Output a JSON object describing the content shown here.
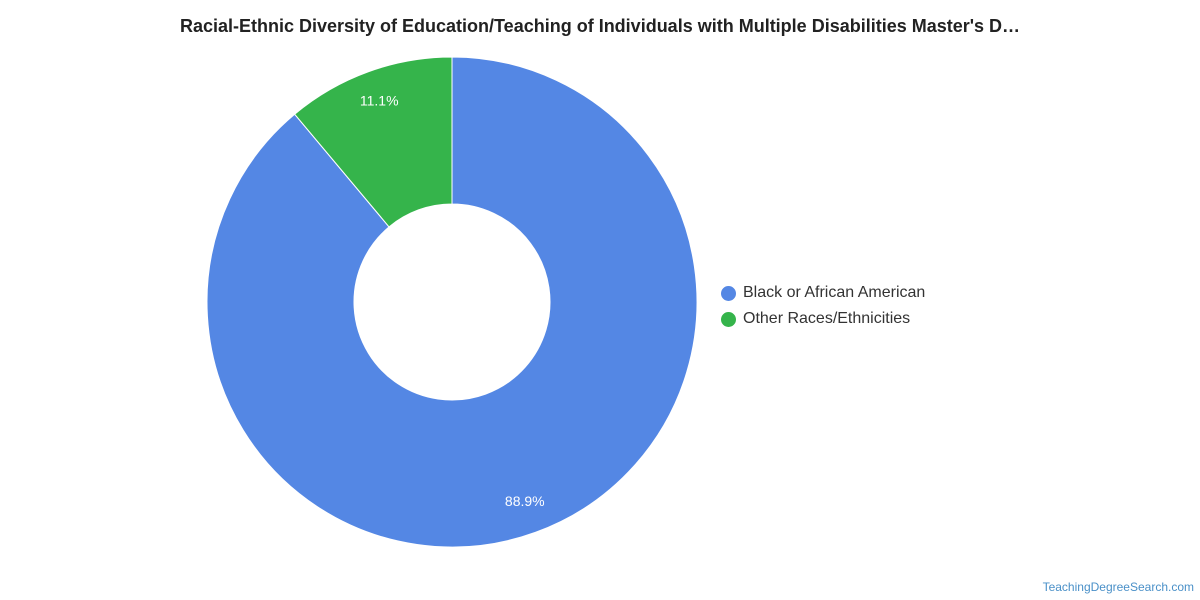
{
  "chart_data": {
    "type": "pie",
    "title": "Racial-Ethnic Diversity of Education/Teaching of Individuals with Multiple Disabilities Master's D…",
    "categories": [
      "Black or African American",
      "Other Races/Ethnicities"
    ],
    "values": [
      88.9,
      11.1
    ],
    "labels": [
      "88.9%",
      "11.1%"
    ],
    "colors": [
      "#5487e4",
      "#35b44b"
    ],
    "legend_position": "right"
  },
  "source": "TeachingDegreeSearch.com"
}
